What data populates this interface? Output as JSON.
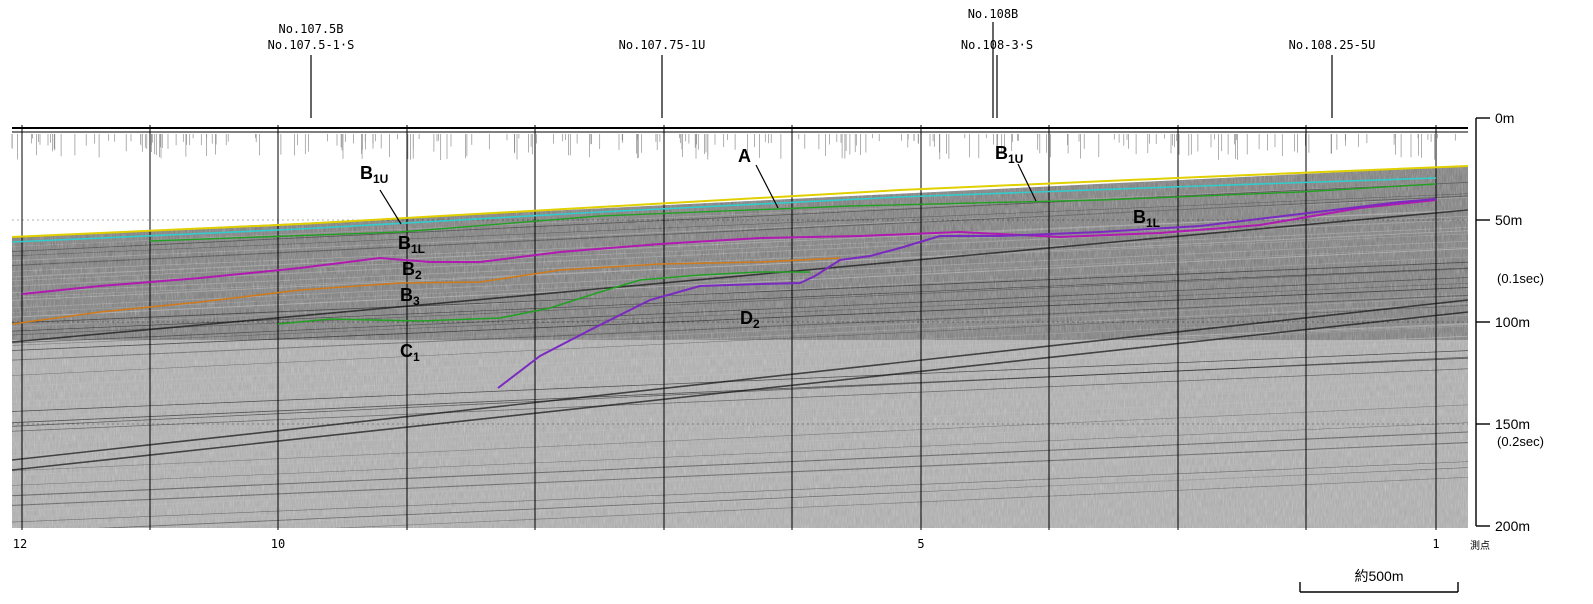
{
  "survey_lines": [
    {
      "id": "s1",
      "label": "No.107.5B"
    },
    {
      "id": "s2",
      "label": "No.107.5-1·S"
    },
    {
      "id": "s3",
      "label": "No.107.75-1U"
    },
    {
      "id": "s4",
      "label": "No.108B"
    },
    {
      "id": "s5",
      "label": "No.108-3·S"
    },
    {
      "id": "s6",
      "label": "No.108.25-5U"
    }
  ],
  "depth_scale": {
    "ticks": [
      {
        "label": "0m"
      },
      {
        "label": "50m"
      },
      {
        "label": "(0.1sec)"
      },
      {
        "label": "100m"
      },
      {
        "label": "150m"
      },
      {
        "label": "(0.2sec)"
      },
      {
        "label": "200m"
      }
    ]
  },
  "station_axis": {
    "ticks": [
      {
        "label": "12"
      },
      {
        "label": "10"
      },
      {
        "label": "5"
      },
      {
        "label": "1"
      }
    ],
    "unit_label": "測点"
  },
  "scale_bar": {
    "label": "約500m"
  },
  "units": [
    {
      "id": "A",
      "main": "A",
      "sub": ""
    },
    {
      "id": "B1U_left",
      "main": "B",
      "sub": "1U"
    },
    {
      "id": "B1U_right",
      "main": "B",
      "sub": "1U"
    },
    {
      "id": "B1L_left",
      "main": "B",
      "sub": "1L"
    },
    {
      "id": "B1L_right",
      "main": "B",
      "sub": "1L"
    },
    {
      "id": "B2",
      "main": "B",
      "sub": "2"
    },
    {
      "id": "B3",
      "main": "B",
      "sub": "3"
    },
    {
      "id": "C1",
      "main": "C",
      "sub": "1"
    },
    {
      "id": "D2",
      "main": "D",
      "sub": "2"
    }
  ],
  "horizon_colors": {
    "seafloor": "#e0d000",
    "cyan": "#33cccc",
    "green": "#22a022",
    "magenta": "#b01ab0",
    "orange": "#d07a1a",
    "purple": "#7a2ac0"
  }
}
